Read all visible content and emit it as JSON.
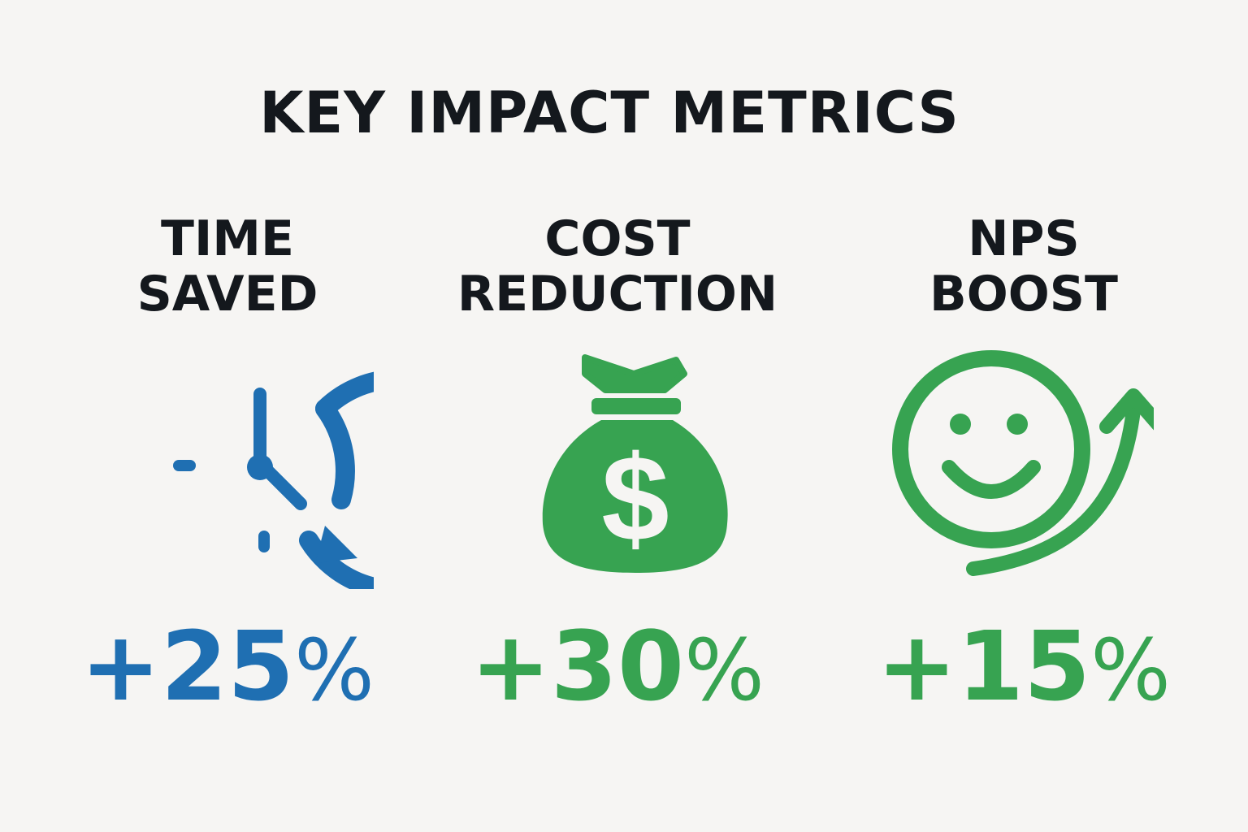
{
  "title": "KEY IMPACT METRICS",
  "colors": {
    "background": "#f6f5f3",
    "text": "#14181d",
    "blue": "#1f6fb2",
    "green": "#37a351"
  },
  "metrics": [
    {
      "label_line1": "TIME",
      "label_line2": "SAVED",
      "value": "+25",
      "unit": "%",
      "icon": "clock-refresh-icon",
      "color": "#1f6fb2"
    },
    {
      "label_line1": "COST",
      "label_line2": "REDUCTION",
      "value": "+30",
      "unit": "%",
      "icon": "money-bag-icon",
      "color": "#37a351"
    },
    {
      "label_line1": "NPS",
      "label_line2": "BOOST",
      "value": "+15",
      "unit": "%",
      "icon": "smiley-arrow-icon",
      "color": "#37a351"
    }
  ]
}
